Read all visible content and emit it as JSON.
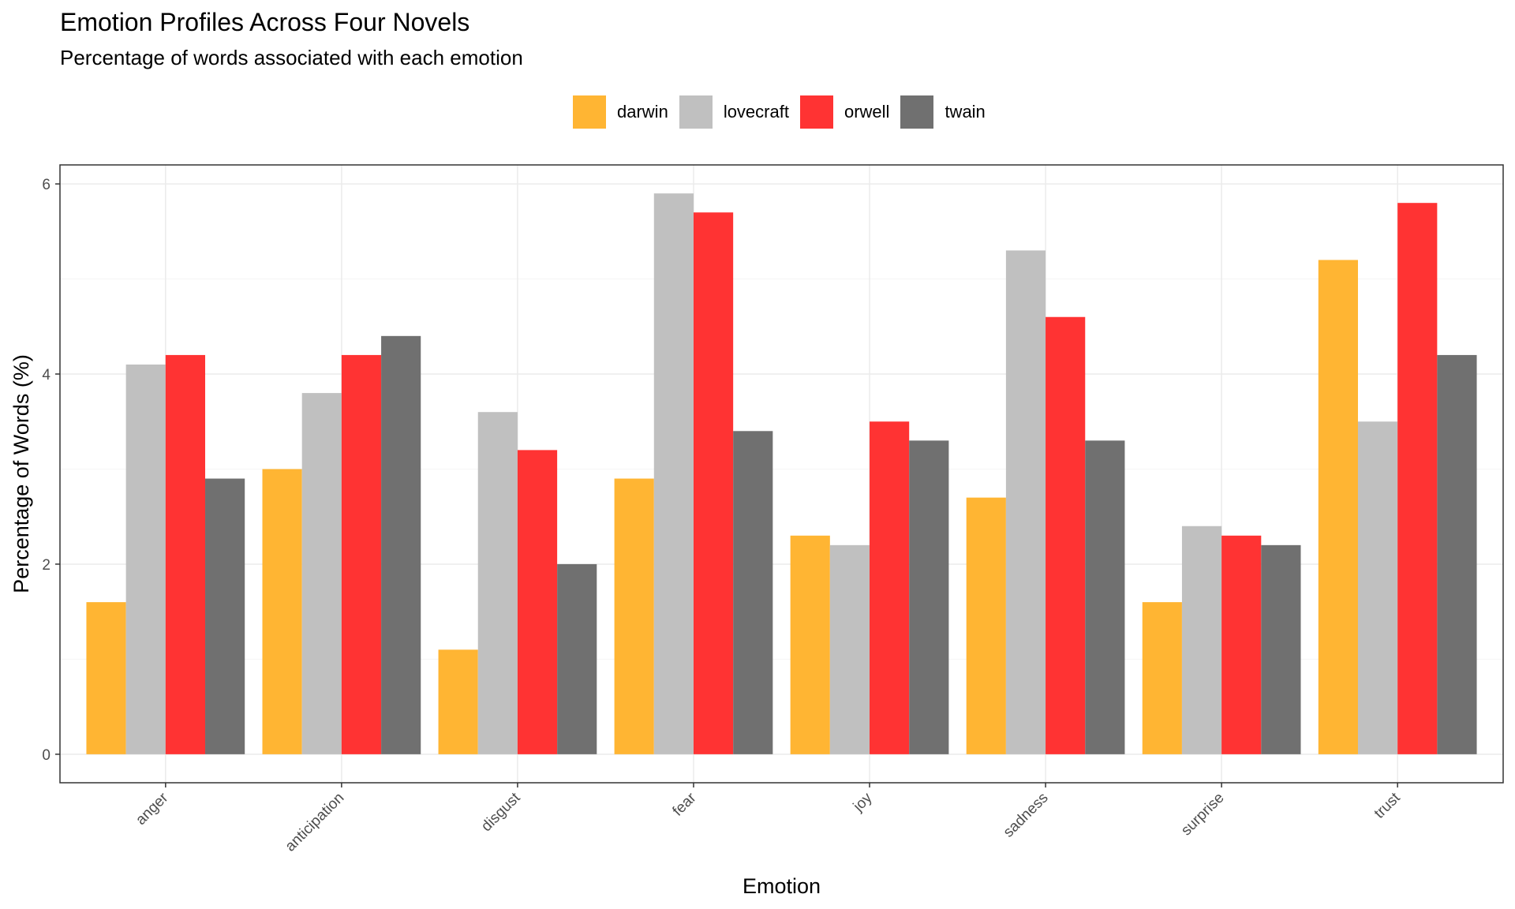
{
  "chart_data": {
    "type": "bar",
    "title": "Emotion Profiles Across Four Novels",
    "subtitle": "Percentage of words associated with each emotion",
    "xlabel": "Emotion",
    "ylabel": "Percentage of Words (%)",
    "categories": [
      "anger",
      "anticipation",
      "disgust",
      "fear",
      "joy",
      "sadness",
      "surprise",
      "trust"
    ],
    "series": [
      {
        "name": "darwin",
        "color": "#FFB533",
        "values": [
          1.6,
          3.0,
          1.1,
          2.9,
          2.3,
          2.7,
          1.6,
          5.2
        ]
      },
      {
        "name": "lovecraft",
        "color": "#C0C0C0",
        "values": [
          4.1,
          3.8,
          3.6,
          5.9,
          2.2,
          5.3,
          2.4,
          3.5
        ]
      },
      {
        "name": "orwell",
        "color": "#FF3333",
        "values": [
          4.2,
          4.2,
          3.2,
          5.7,
          3.5,
          4.6,
          2.3,
          5.8
        ]
      },
      {
        "name": "twain",
        "color": "#707070",
        "values": [
          2.9,
          4.4,
          2.0,
          3.4,
          3.3,
          3.3,
          2.2,
          4.2
        ]
      }
    ],
    "yticks": [
      0,
      2,
      4,
      6
    ],
    "ylim": [
      -0.3,
      6.2
    ],
    "grid": true,
    "legend_position": "top",
    "bar_mode": "dodge"
  }
}
